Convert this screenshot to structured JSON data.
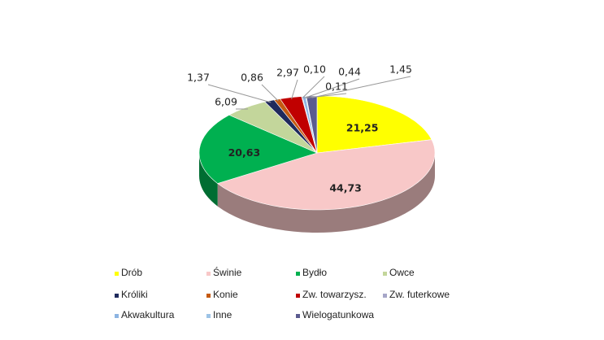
{
  "chart_data": {
    "type": "pie",
    "categories": [
      "Drób",
      "Świnie",
      "Bydło",
      "Owce",
      "Króliki",
      "Konie",
      "Zw. towarzysz.",
      "Zw. futerkowe",
      "Akwakultura",
      "Inne",
      "Wielogatunkowa"
    ],
    "values": [
      21.25,
      44.73,
      20.63,
      6.09,
      1.37,
      0.86,
      2.97,
      0.1,
      0.44,
      0.11,
      1.45
    ],
    "value_labels": [
      "21,25",
      "44,73",
      "20,63",
      "6,09",
      "1,37",
      "0,86",
      "2,97",
      "0,10",
      "0,44",
      "0,11",
      "1,45"
    ],
    "colors": [
      "#ffff00",
      "#f8c8c8",
      "#00b050",
      "#c3d69b",
      "#1f2a5c",
      "#c55a11",
      "#c00000",
      "#a6a6c8",
      "#8db4e2",
      "#9dc3e6",
      "#5b5b8f"
    ],
    "legend": "bottom"
  }
}
